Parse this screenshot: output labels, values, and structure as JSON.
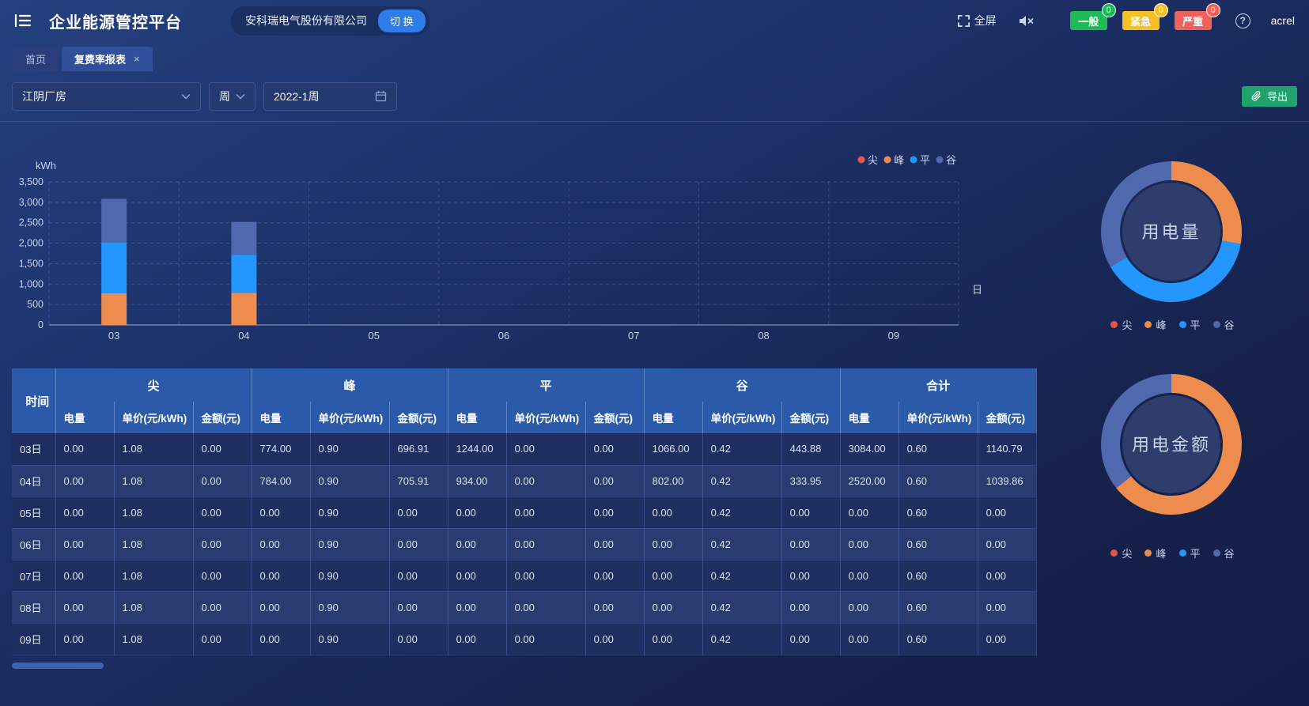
{
  "header": {
    "app_title": "企业能源管控平台",
    "company_name": "安科瑞电气股份有限公司",
    "switch_button": "切 换",
    "fullscreen_label": "全屏",
    "help_glyph": "?",
    "username": "acrel",
    "alarm_chips": [
      {
        "label": "一般",
        "count": "0",
        "color": "#1eba55"
      },
      {
        "label": "紧急",
        "count": "0",
        "color": "#f6bf26"
      },
      {
        "label": "严重",
        "count": "0",
        "color": "#f2605a"
      }
    ]
  },
  "tabs": [
    {
      "label": "首页",
      "active": false,
      "closable": false
    },
    {
      "label": "复费率报表",
      "active": true,
      "closable": true,
      "close_glyph": "×"
    }
  ],
  "toolbar": {
    "site_select": "江阴厂房",
    "period_select": "周",
    "date_value": "2022-1周",
    "export_label": "导出"
  },
  "chart_data": [
    {
      "type": "bar",
      "stacked": true,
      "ylabel": "kWh",
      "x_axis_name": "日",
      "categories": [
        "03",
        "04",
        "05",
        "06",
        "07",
        "08",
        "09"
      ],
      "series": [
        {
          "name": "尖",
          "color": "#e2564d",
          "values": [
            0,
            0,
            0,
            0,
            0,
            0,
            0
          ]
        },
        {
          "name": "峰",
          "color": "#ee8c4d",
          "values": [
            774,
            784,
            0,
            0,
            0,
            0,
            0
          ]
        },
        {
          "name": "平",
          "color": "#2396ff",
          "values": [
            1244,
            934,
            0,
            0,
            0,
            0,
            0
          ]
        },
        {
          "name": "谷",
          "color": "#5069ae",
          "values": [
            1066,
            802,
            0,
            0,
            0,
            0,
            0
          ]
        }
      ],
      "ylim": [
        0,
        3500
      ],
      "ytick_labels": [
        "0",
        "500",
        "1,000",
        "1,500",
        "2,000",
        "2,500",
        "3,000",
        "3,500"
      ],
      "legend": [
        "尖",
        "峰",
        "平",
        "谷"
      ],
      "legend_position": "top-right",
      "grid": "dashed"
    },
    {
      "type": "pie",
      "subtype": "donut",
      "title": "用电量",
      "series": [
        {
          "name": "尖",
          "value": 0,
          "color": "#e2564d"
        },
        {
          "name": "峰",
          "value": 1558,
          "color": "#ee8c4d"
        },
        {
          "name": "平",
          "value": 2178,
          "color": "#2396ff"
        },
        {
          "name": "谷",
          "value": 1868,
          "color": "#5069ae"
        }
      ],
      "legend": [
        "尖",
        "峰",
        "平",
        "谷"
      ],
      "legend_position": "bottom"
    },
    {
      "type": "pie",
      "subtype": "donut",
      "title": "用电金额",
      "series": [
        {
          "name": "尖",
          "value": 0,
          "color": "#e2564d"
        },
        {
          "name": "峰",
          "value": 1402.82,
          "color": "#ee8c4d"
        },
        {
          "name": "平",
          "value": 0,
          "color": "#2396ff"
        },
        {
          "name": "谷",
          "value": 777.83,
          "color": "#5069ae"
        }
      ],
      "legend": [
        "尖",
        "峰",
        "平",
        "谷"
      ],
      "legend_position": "bottom"
    }
  ],
  "table": {
    "time_header": "时间",
    "column_groups": [
      "尖",
      "峰",
      "平",
      "谷",
      "合计"
    ],
    "sub_columns": [
      "电量",
      "单价(元/kWh)",
      "金额(元)"
    ],
    "rows": [
      {
        "time": "03日",
        "values": [
          "0.00",
          "1.08",
          "0.00",
          "774.00",
          "0.90",
          "696.91",
          "1244.00",
          "0.00",
          "0.00",
          "1066.00",
          "0.42",
          "443.88",
          "3084.00",
          "0.60",
          "1140.79"
        ]
      },
      {
        "time": "04日",
        "values": [
          "0.00",
          "1.08",
          "0.00",
          "784.00",
          "0.90",
          "705.91",
          "934.00",
          "0.00",
          "0.00",
          "802.00",
          "0.42",
          "333.95",
          "2520.00",
          "0.60",
          "1039.86"
        ]
      },
      {
        "time": "05日",
        "values": [
          "0.00",
          "1.08",
          "0.00",
          "0.00",
          "0.90",
          "0.00",
          "0.00",
          "0.00",
          "0.00",
          "0.00",
          "0.42",
          "0.00",
          "0.00",
          "0.60",
          "0.00"
        ]
      },
      {
        "time": "06日",
        "values": [
          "0.00",
          "1.08",
          "0.00",
          "0.00",
          "0.90",
          "0.00",
          "0.00",
          "0.00",
          "0.00",
          "0.00",
          "0.42",
          "0.00",
          "0.00",
          "0.60",
          "0.00"
        ]
      },
      {
        "time": "07日",
        "values": [
          "0.00",
          "1.08",
          "0.00",
          "0.00",
          "0.90",
          "0.00",
          "0.00",
          "0.00",
          "0.00",
          "0.00",
          "0.42",
          "0.00",
          "0.00",
          "0.60",
          "0.00"
        ]
      },
      {
        "time": "08日",
        "values": [
          "0.00",
          "1.08",
          "0.00",
          "0.00",
          "0.90",
          "0.00",
          "0.00",
          "0.00",
          "0.00",
          "0.00",
          "0.42",
          "0.00",
          "0.00",
          "0.60",
          "0.00"
        ]
      },
      {
        "time": "09日",
        "values": [
          "0.00",
          "1.08",
          "0.00",
          "0.00",
          "0.90",
          "0.00",
          "0.00",
          "0.00",
          "0.00",
          "0.00",
          "0.42",
          "0.00",
          "0.00",
          "0.60",
          "0.00"
        ]
      }
    ]
  }
}
